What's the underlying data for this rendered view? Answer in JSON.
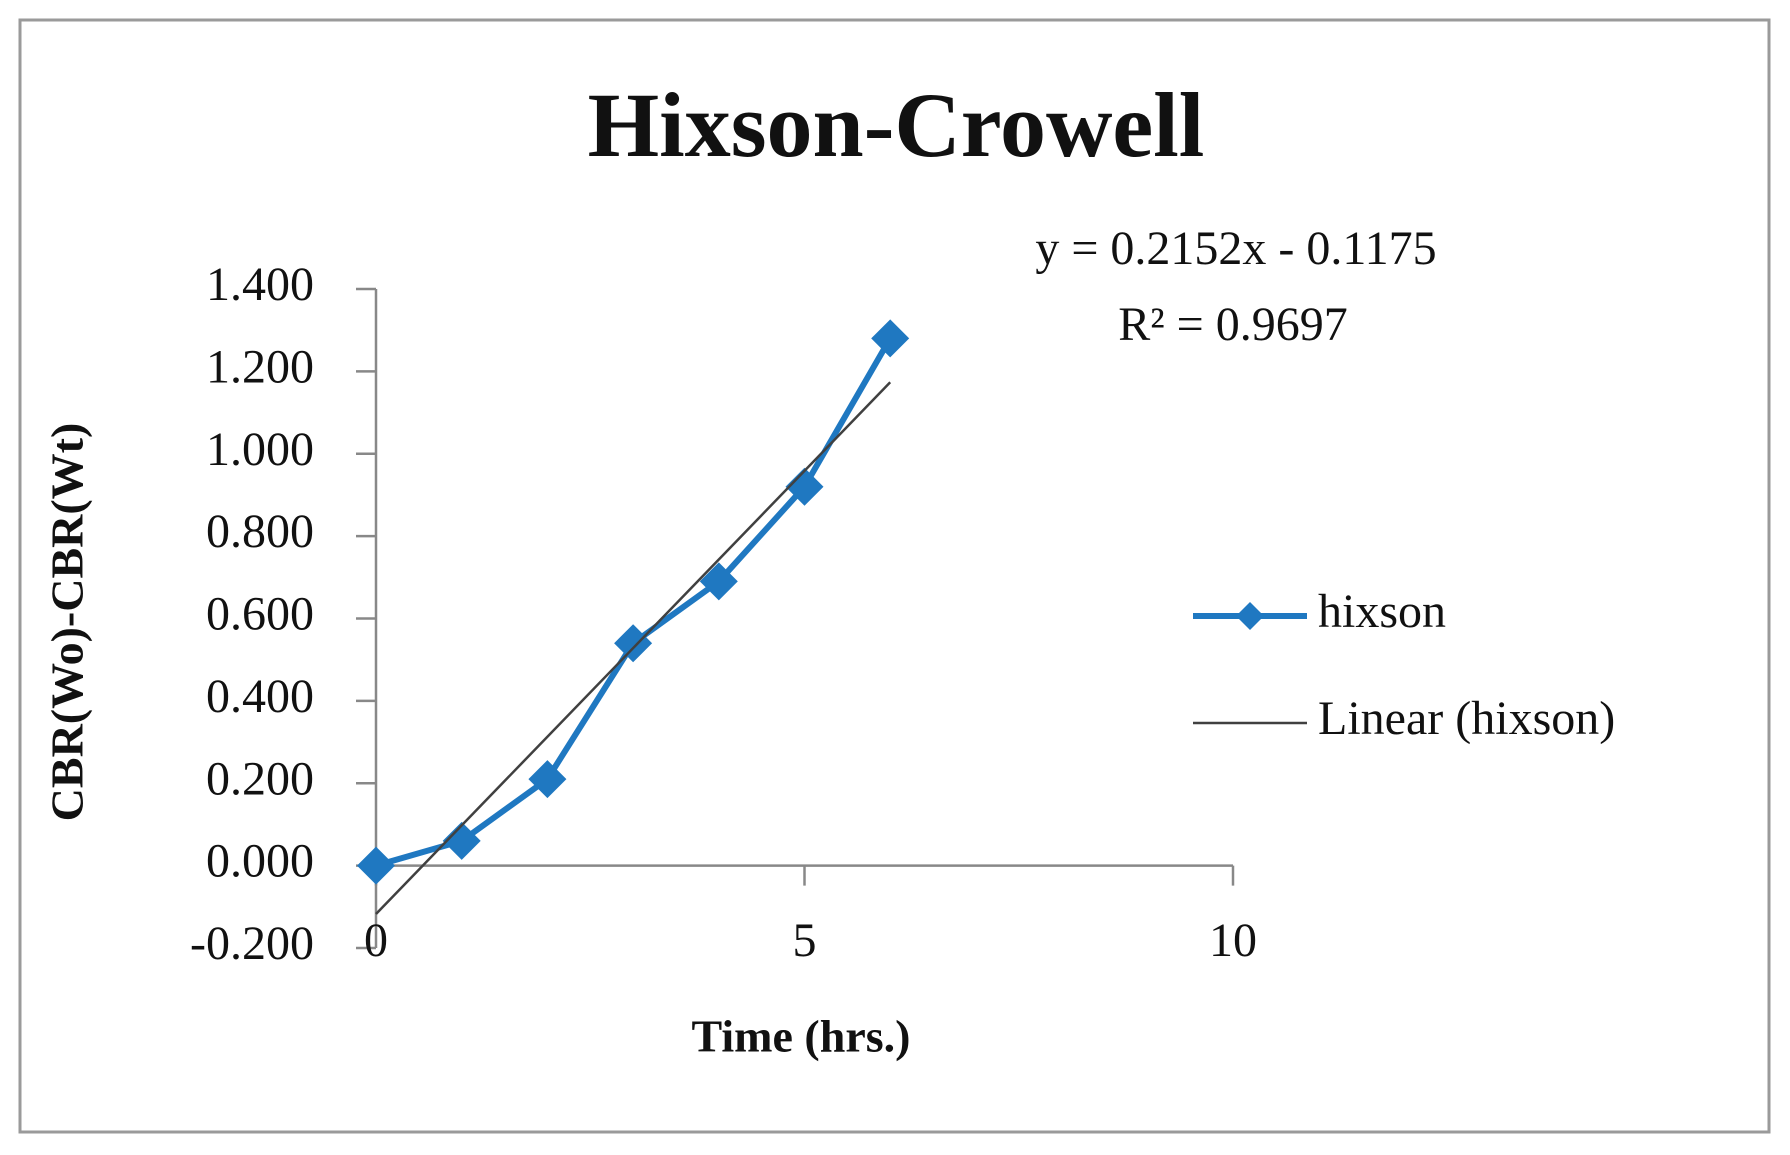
{
  "chart_data": {
    "type": "line",
    "title": "Hixson-Crowell",
    "x_label": "Time (hrs.)",
    "y_label": "CBR(Wo)-CBR(Wt)",
    "x": [
      0,
      1,
      2,
      3,
      4,
      5,
      6
    ],
    "series": [
      {
        "name": "hixson",
        "color": "#1f78c1",
        "values": [
          0.0,
          0.06,
          0.21,
          0.54,
          0.69,
          0.92,
          1.28
        ]
      }
    ],
    "trendline": {
      "name": "Linear (hixson)",
      "color": "#404040",
      "slope": 0.2152,
      "intercept": -0.1175,
      "equation": "y = 0.2152x - 0.1175",
      "r_squared": 0.9697,
      "r_squared_label": "R² = 0.9697"
    },
    "xlim": [
      0,
      10
    ],
    "xticks": [
      0,
      5,
      10
    ],
    "ylim": [
      -0.2,
      1.4
    ],
    "yticks": [
      {
        "value": -0.2,
        "label": "-0.200"
      },
      {
        "value": 0,
        "label": "0.000"
      },
      {
        "value": 0.2,
        "label": "0.200"
      },
      {
        "value": 0.4,
        "label": "0.400"
      },
      {
        "value": 0.6,
        "label": "0.600"
      },
      {
        "value": 0.8,
        "label": "0.800"
      },
      {
        "value": 1,
        "label": "1.000"
      },
      {
        "value": 1.2,
        "label": "1.200"
      },
      {
        "value": 1.4,
        "label": "1.400"
      }
    ],
    "grid": false,
    "legend": "right"
  }
}
